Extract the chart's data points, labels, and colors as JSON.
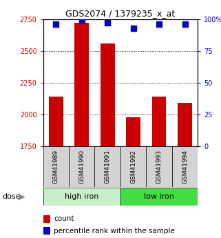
{
  "title": "GDS2074 / 1379235_x_at",
  "samples": [
    "GSM41989",
    "GSM41990",
    "GSM41991",
    "GSM41992",
    "GSM41993",
    "GSM41994"
  ],
  "bar_values": [
    2140,
    2720,
    2560,
    1980,
    2140,
    2090
  ],
  "bar_bottom": 1750,
  "bar_color": "#cc0000",
  "percentile_values": [
    96,
    99,
    97,
    93,
    96,
    96
  ],
  "dot_color": "#0000cc",
  "ylim_left": [
    1750,
    2750
  ],
  "ylim_right": [
    0,
    100
  ],
  "yticks_left": [
    1750,
    2000,
    2250,
    2500,
    2750
  ],
  "yticks_right": [
    0,
    25,
    50,
    75,
    100
  ],
  "ytick_labels_right": [
    "0",
    "25",
    "50",
    "75",
    "100%"
  ],
  "groups": [
    {
      "label": "high iron",
      "color": "#c8f0c8"
    },
    {
      "label": "low iron",
      "color": "#44dd44"
    }
  ],
  "dose_label": "dose",
  "legend_count": "count",
  "legend_percentile": "percentile rank within the sample",
  "grid_lines": [
    2000,
    2250,
    2500
  ],
  "background_color": "#ffffff",
  "tick_label_color_left": "#cc0000",
  "tick_label_color_right": "#0000cc",
  "bar_width": 0.55,
  "dot_size": 28
}
